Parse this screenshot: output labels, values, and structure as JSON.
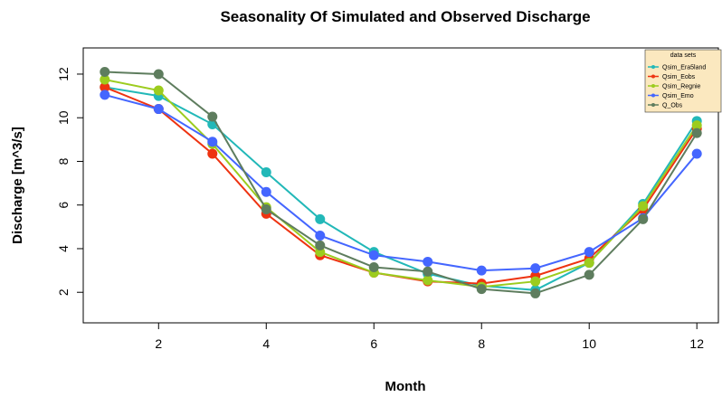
{
  "chart_data": {
    "type": "line",
    "title": "Seasonality Of Simulated and Observed Discharge",
    "xlabel": "Month",
    "ylabel": "Discharge [m^3/s]",
    "xlim": [
      0.6,
      12.4
    ],
    "ylim": [
      0.6,
      13.2
    ],
    "x_ticks": [
      2,
      4,
      6,
      8,
      10,
      12
    ],
    "y_ticks": [
      2,
      4,
      6,
      8,
      10,
      12
    ],
    "grid": false,
    "legend": {
      "title": "data sets",
      "position": "top-right",
      "background": "#fbe8bf"
    },
    "x": [
      1,
      2,
      3,
      4,
      5,
      6,
      7,
      8,
      9,
      10,
      11,
      12
    ],
    "series": [
      {
        "name": "Qsim_Era5land",
        "color": "#22b8b8",
        "values": [
          11.4,
          11.0,
          9.7,
          7.5,
          5.35,
          3.85,
          2.85,
          2.3,
          2.1,
          3.35,
          6.05,
          9.85
        ]
      },
      {
        "name": "Qsim_Eobs",
        "color": "#ee3311",
        "values": [
          11.4,
          10.4,
          8.35,
          5.6,
          3.7,
          2.9,
          2.5,
          2.4,
          2.75,
          3.55,
          5.8,
          9.5
        ]
      },
      {
        "name": "Qsim_Regnie",
        "color": "#9ccc1e",
        "values": [
          11.75,
          11.25,
          8.8,
          5.9,
          3.85,
          2.9,
          2.55,
          2.25,
          2.5,
          3.35,
          5.95,
          9.65
        ]
      },
      {
        "name": "Qsim_Emo",
        "color": "#4466ff",
        "values": [
          11.05,
          10.4,
          8.9,
          6.6,
          4.6,
          3.7,
          3.4,
          3.0,
          3.1,
          3.85,
          5.4,
          8.35
        ]
      },
      {
        "name": "Q_Obs",
        "color": "#5e7d5e",
        "values": [
          12.1,
          12.0,
          10.05,
          5.8,
          4.15,
          3.15,
          2.95,
          2.15,
          1.95,
          2.8,
          5.35,
          9.3
        ]
      }
    ]
  }
}
